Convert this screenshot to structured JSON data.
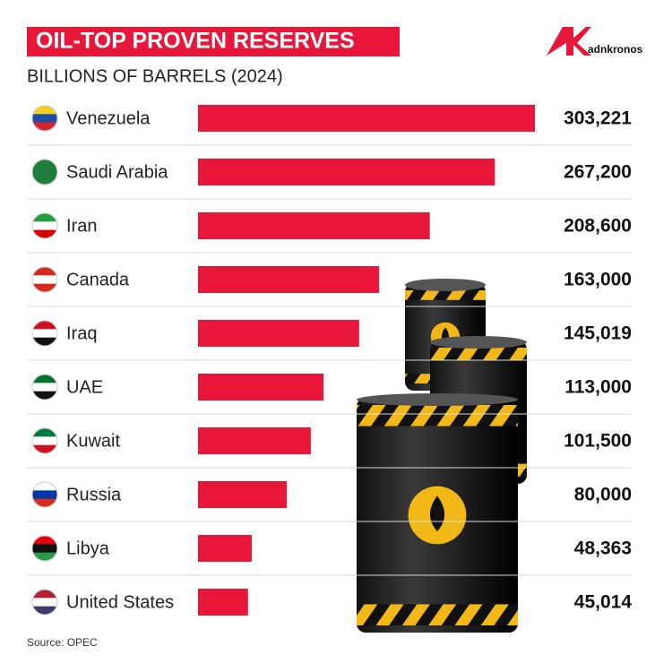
{
  "chart_data": {
    "type": "bar",
    "orientation": "horizontal",
    "title": "OIL-TOP PROVEN RESERVES",
    "subtitle": "BILLIONS OF BARRELS (2024)",
    "source": "Source: OPEC",
    "brand": "adnkronos",
    "color": "#e8173a",
    "categories": [
      "Venezuela",
      "Saudi Arabia",
      "Iran",
      "Canada",
      "Iraq",
      "UAE",
      "Kuwait",
      "Russia",
      "Libya",
      "United States"
    ],
    "values": [
      303221,
      267200,
      208600,
      163000,
      145019,
      113000,
      101500,
      80000,
      48363,
      45014
    ],
    "value_labels": [
      "303,221",
      "267,200",
      "208,600",
      "163,000",
      "145,019",
      "113,000",
      "101,500",
      "80,000",
      "48,363",
      "45,014"
    ]
  }
}
